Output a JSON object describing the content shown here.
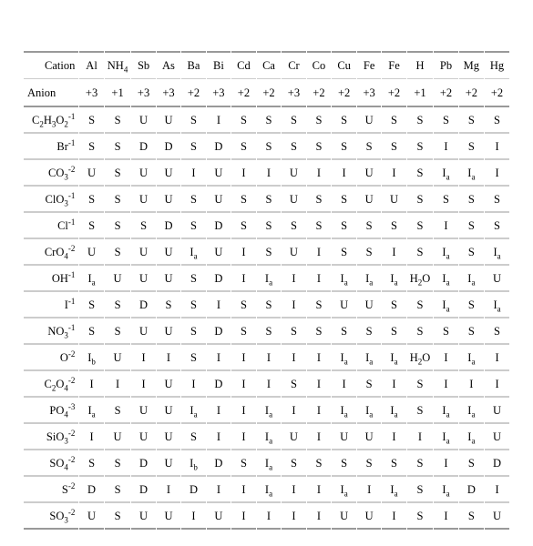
{
  "headers": {
    "cationLabel": "Cation",
    "anionLabel": "Anion",
    "cations": [
      "Al",
      "NH4",
      "Sb",
      "As",
      "Ba",
      "Bi",
      "Cd",
      "Ca",
      "Cr",
      "Co",
      "Cu",
      "Fe",
      "Fe",
      "H",
      "Pb",
      "Mg",
      "Hg"
    ],
    "charges": [
      "+3",
      "+1",
      "+3",
      "+3",
      "+2",
      "+3",
      "+2",
      "+2",
      "+3",
      "+2",
      "+2",
      "+3",
      "+2",
      "+1",
      "+2",
      "+2",
      "+2"
    ]
  },
  "rows": [
    {
      "label": "C2H3O2-1",
      "cells": [
        "S",
        "S",
        "U",
        "U",
        "S",
        "I",
        "S",
        "S",
        "S",
        "S",
        "S",
        "U",
        "S",
        "S",
        "S",
        "S",
        "S"
      ]
    },
    {
      "label": "Br-1",
      "cells": [
        "S",
        "S",
        "D",
        "D",
        "S",
        "D",
        "S",
        "S",
        "S",
        "S",
        "S",
        "S",
        "S",
        "S",
        "I",
        "S",
        "I"
      ]
    },
    {
      "label": "CO3-2",
      "cells": [
        "U",
        "S",
        "U",
        "U",
        "I",
        "U",
        "I",
        "I",
        "U",
        "I",
        "I",
        "U",
        "I",
        "S",
        "Ia",
        "Ia",
        "I"
      ]
    },
    {
      "label": "ClO3-1",
      "cells": [
        "S",
        "S",
        "U",
        "U",
        "S",
        "U",
        "S",
        "S",
        "U",
        "S",
        "S",
        "U",
        "U",
        "S",
        "S",
        "S",
        "S"
      ]
    },
    {
      "label": "Cl-1",
      "cells": [
        "S",
        "S",
        "S",
        "D",
        "S",
        "D",
        "S",
        "S",
        "S",
        "S",
        "S",
        "S",
        "S",
        "S",
        "I",
        "S",
        "S"
      ]
    },
    {
      "label": "CrO4-2",
      "cells": [
        "U",
        "S",
        "U",
        "U",
        "Ia",
        "U",
        "I",
        "S",
        "U",
        "I",
        "S",
        "S",
        "I",
        "S",
        "Ia",
        "S",
        "Ia"
      ]
    },
    {
      "label": "OH-1",
      "cells": [
        "Ia",
        "U",
        "U",
        "U",
        "S",
        "D",
        "I",
        "Ia",
        "I",
        "I",
        "Ia",
        "Ia",
        "Ia",
        "H2O",
        "Ia",
        "Ia",
        "U"
      ]
    },
    {
      "label": "I-1",
      "cells": [
        "S",
        "S",
        "D",
        "S",
        "S",
        "I",
        "S",
        "S",
        "I",
        "S",
        "U",
        "U",
        "S",
        "S",
        "Ia",
        "S",
        "Ia"
      ]
    },
    {
      "label": "NO3-1",
      "cells": [
        "S",
        "S",
        "U",
        "U",
        "S",
        "D",
        "S",
        "S",
        "S",
        "S",
        "S",
        "S",
        "S",
        "S",
        "S",
        "S",
        "S"
      ]
    },
    {
      "label": "O-2",
      "cells": [
        "Ib",
        "U",
        "I",
        "I",
        "S",
        "I",
        "I",
        "I",
        "I",
        "I",
        "Ia",
        "Ia",
        "Ia",
        "H2O",
        "I",
        "Ia",
        "I"
      ]
    },
    {
      "label": "C2O4-2",
      "cells": [
        "I",
        "I",
        "I",
        "U",
        "I",
        "D",
        "I",
        "I",
        "S",
        "I",
        "I",
        "S",
        "I",
        "S",
        "I",
        "I",
        "I"
      ]
    },
    {
      "label": "PO4-3",
      "cells": [
        "Ia",
        "S",
        "U",
        "U",
        "Ia",
        "I",
        "I",
        "Ia",
        "I",
        "I",
        "Ia",
        "Ia",
        "Ia",
        "S",
        "Ia",
        "Ia",
        "U"
      ]
    },
    {
      "label": "SiO3-2",
      "cells": [
        "I",
        "U",
        "U",
        "U",
        "S",
        "I",
        "I",
        "Ia",
        "U",
        "I",
        "U",
        "U",
        "I",
        "I",
        "Ia",
        "Ia",
        "U"
      ]
    },
    {
      "label": "SO4-2",
      "cells": [
        "S",
        "S",
        "D",
        "U",
        "Ib",
        "D",
        "S",
        "Ia",
        "S",
        "S",
        "S",
        "S",
        "S",
        "S",
        "I",
        "S",
        "D"
      ]
    },
    {
      "label": "S-2",
      "cells": [
        "D",
        "S",
        "D",
        "I",
        "D",
        "I",
        "I",
        "Ia",
        "I",
        "I",
        "Ia",
        "I",
        "Ia",
        "S",
        "Ia",
        "D",
        "I"
      ]
    },
    {
      "label": "SO3-2",
      "cells": [
        "U",
        "S",
        "U",
        "U",
        "I",
        "U",
        "I",
        "I",
        "I",
        "I",
        "U",
        "U",
        "I",
        "S",
        "I",
        "S",
        "U"
      ]
    }
  ],
  "colors": {
    "background": "#ffffff",
    "border": "#cccccc",
    "doubleBorder": "#999999",
    "text": "#000000"
  }
}
